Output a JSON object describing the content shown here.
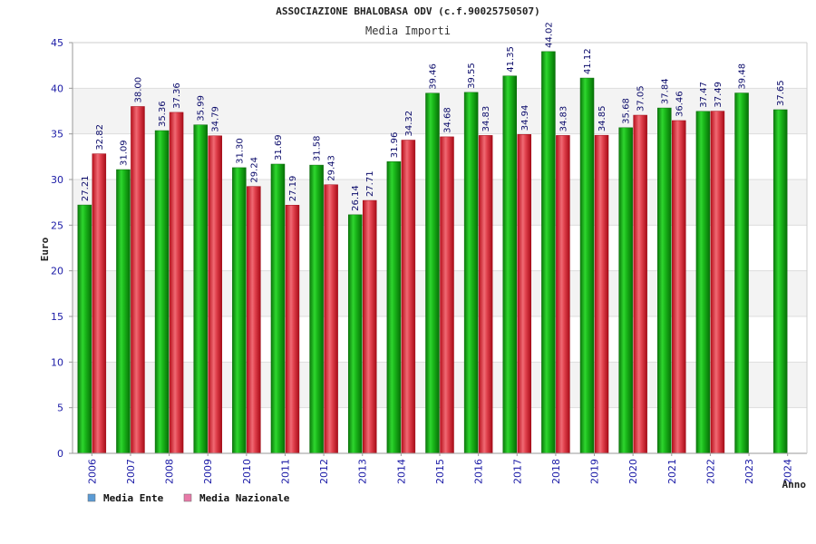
{
  "chart_data": {
    "type": "bar",
    "title": "ASSOCIAZIONE BHALOBASA ODV (c.f.90025750507)",
    "subtitle": "Media Importi",
    "ylabel": "Euro",
    "xlabel": "Anno",
    "ylim": [
      0,
      45
    ],
    "yticks": [
      0,
      5,
      10,
      15,
      20,
      25,
      30,
      35,
      40,
      45
    ],
    "categories": [
      "2006",
      "2007",
      "2008",
      "2009",
      "2010",
      "2011",
      "2012",
      "2013",
      "2014",
      "2015",
      "2016",
      "2017",
      "2018",
      "2019",
      "2020",
      "2021",
      "2022",
      "2023",
      "2024"
    ],
    "series": [
      {
        "name": "Media Ente",
        "color": "#1aa81a",
        "values": [
          27.21,
          31.09,
          35.36,
          35.99,
          31.3,
          31.69,
          31.58,
          26.14,
          31.96,
          39.46,
          39.55,
          41.35,
          44.02,
          41.12,
          35.68,
          37.84,
          37.47,
          39.48,
          37.65
        ],
        "labels": [
          "27.21",
          "31.09",
          "35.36",
          "35.99",
          "31.30",
          "31.69",
          "31.58",
          "26.14",
          "31.96",
          "39.46",
          "39.55",
          "41.35",
          "44.02",
          "41.12",
          "35.68",
          "37.84",
          "37.47",
          "39.48",
          "37.65"
        ]
      },
      {
        "name": "Media Nazionale",
        "color": "#e0303a",
        "values": [
          32.82,
          38.0,
          37.36,
          34.79,
          29.24,
          27.19,
          29.43,
          27.71,
          34.32,
          34.68,
          34.83,
          34.94,
          34.83,
          34.85,
          37.05,
          36.46,
          37.49,
          null,
          null
        ],
        "labels": [
          "32.82",
          "38.00",
          "37.36",
          "34.79",
          "29.24",
          "27.19",
          "29.43",
          "27.71",
          "34.32",
          "34.68",
          "34.83",
          "34.94",
          "34.83",
          "34.85",
          "37.05",
          "36.46",
          "37.49",
          null,
          null
        ]
      }
    ],
    "grid": true,
    "legend_position": "bottom-left",
    "legend": [
      {
        "name": "Media Ente",
        "swatch": "#5b9bd5"
      },
      {
        "name": "Media Nazionale",
        "swatch": "#e87aa8"
      }
    ]
  }
}
